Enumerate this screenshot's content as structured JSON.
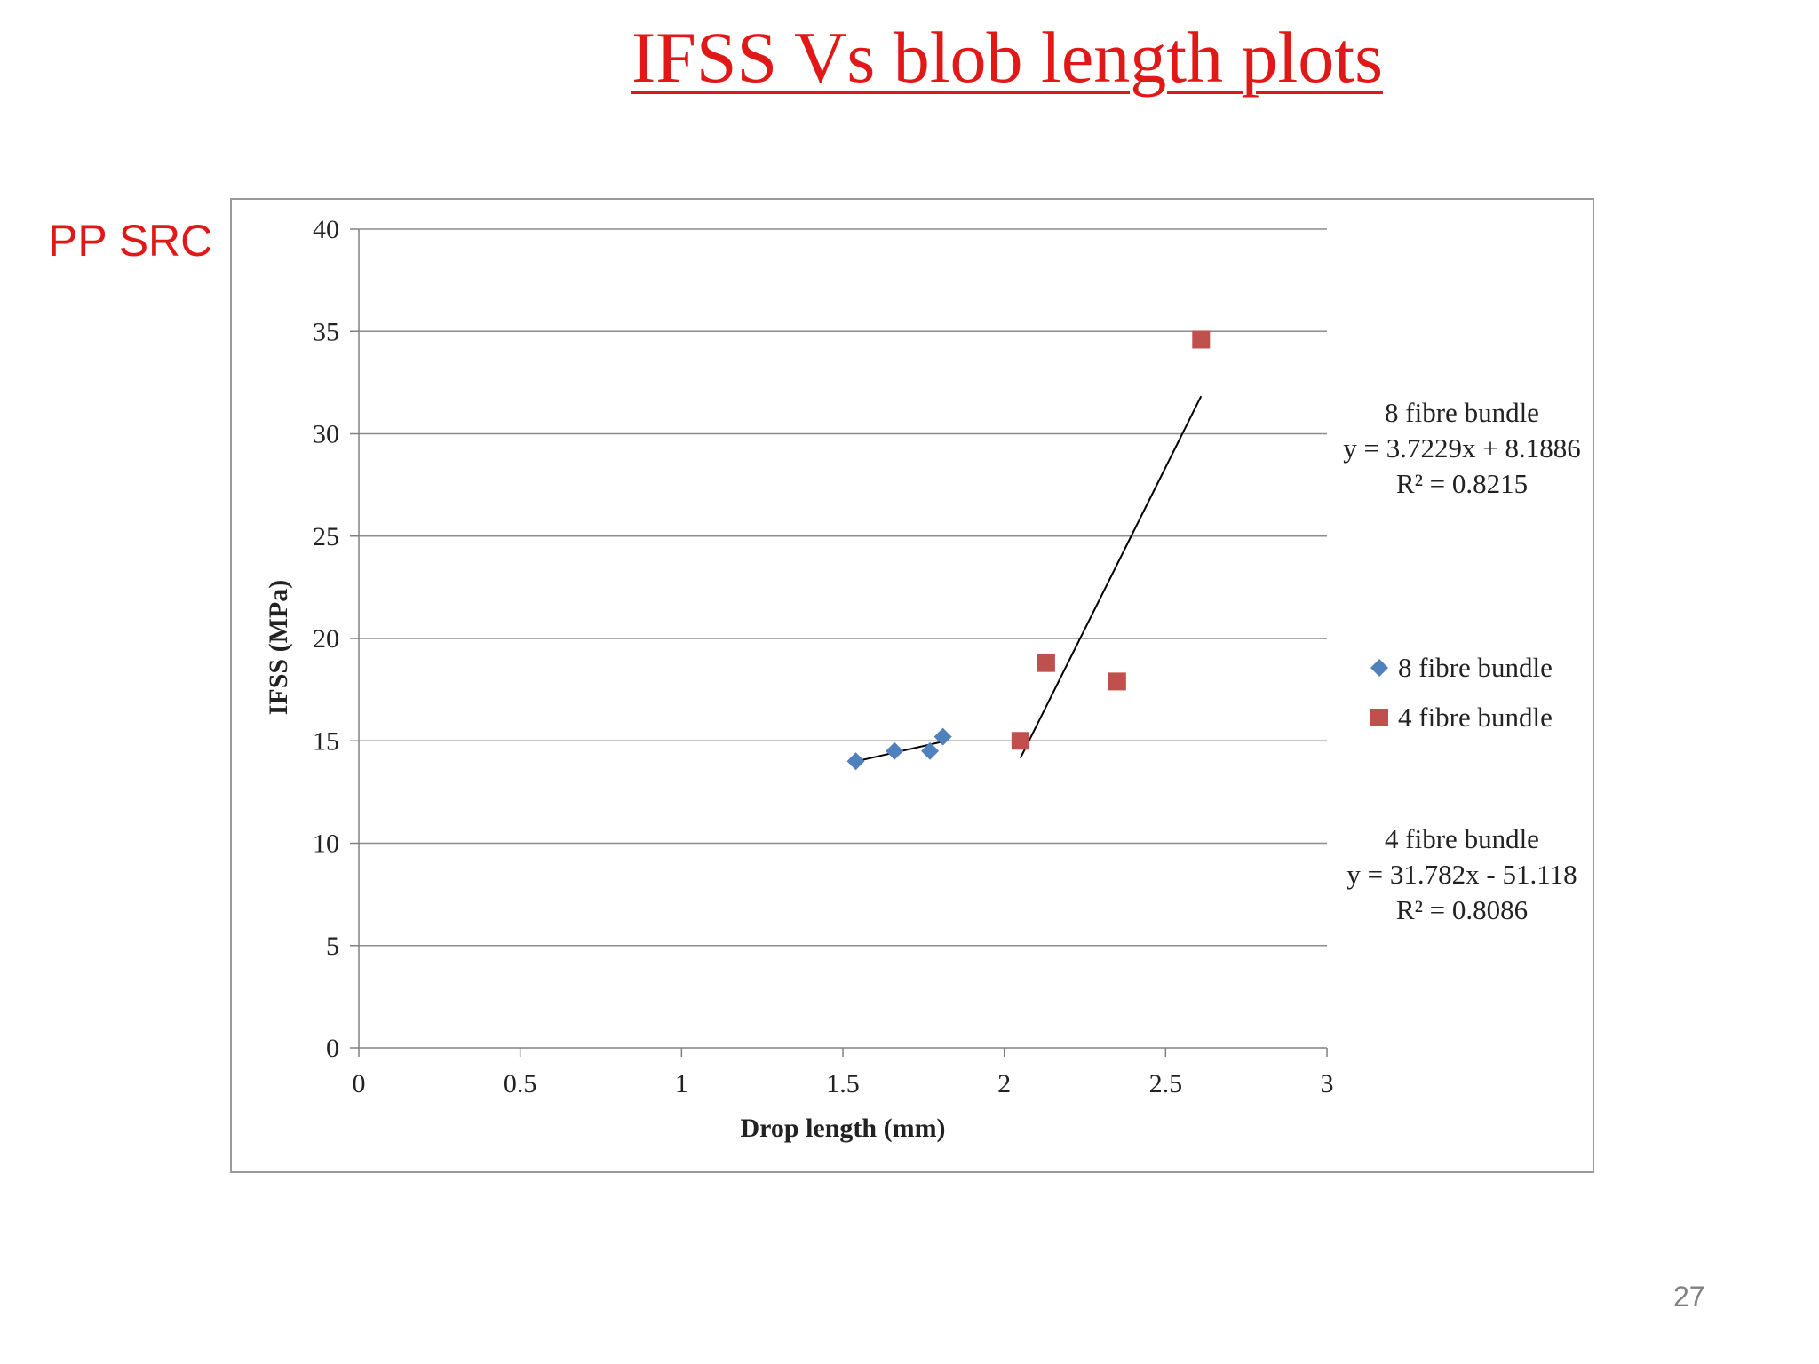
{
  "slide": {
    "title": "IFSS Vs blob length plots",
    "side_label": "PP SRC",
    "page_number": "27"
  },
  "colors": {
    "title": "#e01818",
    "series1": "#4f81bd",
    "series2": "#c0504d",
    "grid": "#8c8c8c",
    "trendline": "#000000"
  },
  "chart_data": {
    "type": "scatter",
    "xlabel": "Drop length (mm)",
    "ylabel": "IFSS (MPa)",
    "xlim": [
      0,
      3
    ],
    "ylim": [
      0,
      40
    ],
    "x_ticks": [
      "0",
      "0.5",
      "1",
      "1.5",
      "2",
      "2.5",
      "3"
    ],
    "y_ticks": [
      "0",
      "5",
      "10",
      "15",
      "20",
      "25",
      "30",
      "35",
      "40"
    ],
    "grid": "horizontal",
    "legend_position": "right",
    "series": [
      {
        "name": "8 fibre bundle",
        "marker": "diamond",
        "points": [
          [
            1.54,
            14.0
          ],
          [
            1.66,
            14.5
          ],
          [
            1.77,
            14.5
          ],
          [
            1.81,
            15.2
          ]
        ],
        "trendline": {
          "x_range": [
            1.54,
            1.81
          ]
        },
        "equation": {
          "title": "8 fibre  bundle",
          "eq": "y = 3.7229x + 8.1886",
          "r2": "R² = 0.8215"
        }
      },
      {
        "name": "4 fibre bundle",
        "marker": "square",
        "points": [
          [
            2.05,
            15.0
          ],
          [
            2.13,
            18.8
          ],
          [
            2.35,
            17.9
          ],
          [
            2.61,
            34.6
          ]
        ],
        "trendline": {
          "x_range": [
            2.05,
            2.61
          ]
        },
        "equation": {
          "title": "4 fibre  bundle",
          "eq": "y = 31.782x - 51.118",
          "r2": "R² = 0.8086"
        }
      }
    ]
  }
}
